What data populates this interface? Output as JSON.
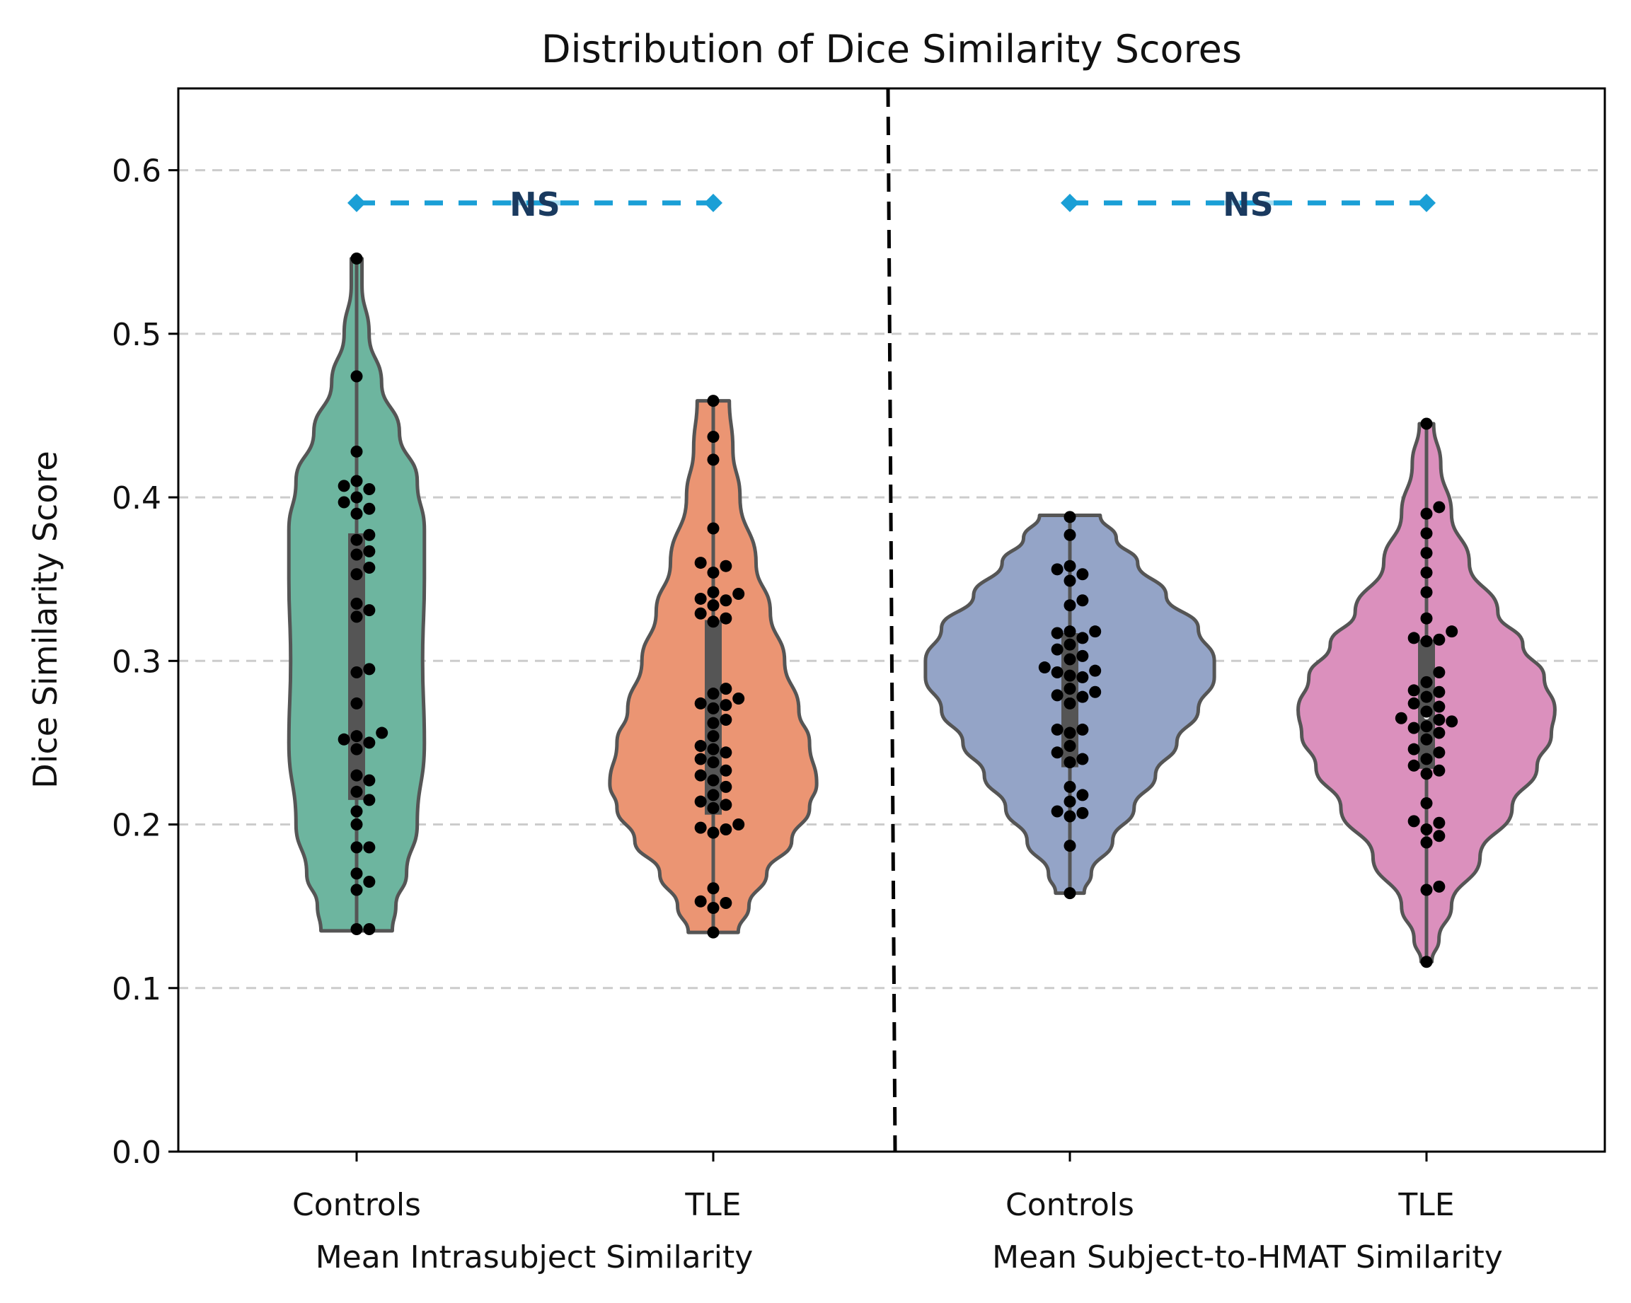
{
  "chart_data": {
    "type": "violin",
    "title": "Distribution of Dice Similarity Scores",
    "xlabel": "",
    "ylabel": "Dice Similarity Score",
    "ylim": [
      0,
      0.65
    ],
    "yticks": [
      "0.0",
      "0.1",
      "0.2",
      "0.3",
      "0.4",
      "0.5",
      "0.6"
    ],
    "ytick_values": [
      0,
      0.1,
      0.2,
      0.3,
      0.4,
      0.5,
      0.6
    ],
    "grid": "horizontal dashed",
    "categories": [
      "Controls",
      "TLE",
      "Controls",
      "TLE"
    ],
    "group_labels": [
      "Mean Intrasubject Similarity",
      "Mean Subject-to-HMAT Similarity"
    ],
    "divider": "dashed vertical line between groups",
    "annotations": [
      {
        "text": "NS",
        "from": 0,
        "to": 1,
        "y": 0.58
      },
      {
        "text": "NS",
        "from": 2,
        "to": 3,
        "y": 0.58
      }
    ],
    "colors": {
      "violins": [
        "#6db59f",
        "#eb9573",
        "#94a4c7",
        "#db90bd"
      ],
      "violin_edge": "#555555",
      "points": "#000000",
      "annotation_line": "#1a9fd6",
      "annotation_text": "#1a3a5f",
      "grid": "#cccccc"
    },
    "series": [
      {
        "name": "Controls - Mean Intrasubject Similarity",
        "quartiles": [
          0.215,
          0.292,
          0.378
        ],
        "range": [
          0.135,
          0.546
        ],
        "density_profile": [
          [
            0.135,
            0.1
          ],
          [
            0.15,
            0.11
          ],
          [
            0.17,
            0.14
          ],
          [
            0.2,
            0.17
          ],
          [
            0.25,
            0.19
          ],
          [
            0.3,
            0.185
          ],
          [
            0.35,
            0.19
          ],
          [
            0.38,
            0.19
          ],
          [
            0.41,
            0.17
          ],
          [
            0.44,
            0.12
          ],
          [
            0.47,
            0.07
          ],
          [
            0.5,
            0.035
          ],
          [
            0.53,
            0.015
          ],
          [
            0.546,
            0.015
          ]
        ],
        "values": [
          0.546,
          0.474,
          0.428,
          0.41,
          0.407,
          0.405,
          0.4,
          0.397,
          0.393,
          0.39,
          0.377,
          0.374,
          0.367,
          0.365,
          0.357,
          0.353,
          0.335,
          0.331,
          0.327,
          0.295,
          0.293,
          0.274,
          0.256,
          0.254,
          0.252,
          0.25,
          0.246,
          0.23,
          0.227,
          0.22,
          0.215,
          0.208,
          0.2,
          0.186,
          0.186,
          0.17,
          0.165,
          0.16,
          0.136,
          0.136
        ]
      },
      {
        "name": "TLE - Mean Intrasubject Similarity",
        "quartiles": [
          0.206,
          0.245,
          0.325
        ],
        "range": [
          0.134,
          0.459
        ],
        "density_profile": [
          [
            0.134,
            0.07
          ],
          [
            0.15,
            0.1
          ],
          [
            0.17,
            0.15
          ],
          [
            0.19,
            0.22
          ],
          [
            0.21,
            0.27
          ],
          [
            0.225,
            0.29
          ],
          [
            0.25,
            0.27
          ],
          [
            0.27,
            0.24
          ],
          [
            0.3,
            0.2
          ],
          [
            0.33,
            0.16
          ],
          [
            0.36,
            0.12
          ],
          [
            0.4,
            0.075
          ],
          [
            0.43,
            0.055
          ],
          [
            0.459,
            0.045
          ]
        ],
        "values": [
          0.459,
          0.437,
          0.423,
          0.381,
          0.36,
          0.358,
          0.354,
          0.342,
          0.341,
          0.338,
          0.337,
          0.334,
          0.329,
          0.326,
          0.324,
          0.283,
          0.28,
          0.277,
          0.274,
          0.273,
          0.271,
          0.264,
          0.262,
          0.254,
          0.248,
          0.246,
          0.244,
          0.24,
          0.238,
          0.233,
          0.23,
          0.227,
          0.223,
          0.218,
          0.214,
          0.212,
          0.21,
          0.2,
          0.198,
          0.197,
          0.195,
          0.161,
          0.153,
          0.152,
          0.149,
          0.134
        ]
      },
      {
        "name": "Controls - Mean Subject-to-HMAT Similarity",
        "quartiles": [
          0.235,
          0.276,
          0.317
        ],
        "range": [
          0.158,
          0.389
        ],
        "density_profile": [
          [
            0.158,
            0.04
          ],
          [
            0.17,
            0.06
          ],
          [
            0.19,
            0.12
          ],
          [
            0.21,
            0.18
          ],
          [
            0.23,
            0.24
          ],
          [
            0.25,
            0.3
          ],
          [
            0.27,
            0.36
          ],
          [
            0.29,
            0.405
          ],
          [
            0.3,
            0.405
          ],
          [
            0.32,
            0.36
          ],
          [
            0.34,
            0.27
          ],
          [
            0.36,
            0.19
          ],
          [
            0.375,
            0.13
          ],
          [
            0.389,
            0.085
          ]
        ],
        "values": [
          0.388,
          0.377,
          0.358,
          0.356,
          0.353,
          0.349,
          0.337,
          0.334,
          0.318,
          0.318,
          0.317,
          0.314,
          0.31,
          0.307,
          0.303,
          0.301,
          0.296,
          0.294,
          0.293,
          0.291,
          0.29,
          0.283,
          0.281,
          0.279,
          0.278,
          0.274,
          0.258,
          0.258,
          0.256,
          0.248,
          0.244,
          0.24,
          0.238,
          0.223,
          0.218,
          0.214,
          0.208,
          0.207,
          0.205,
          0.187,
          0.158
        ]
      },
      {
        "name": "TLE - Mean Subject-to-HMAT Similarity",
        "quartiles": [
          0.234,
          0.266,
          0.313
        ],
        "range": [
          0.116,
          0.445
        ],
        "density_profile": [
          [
            0.116,
            0.015
          ],
          [
            0.13,
            0.035
          ],
          [
            0.15,
            0.07
          ],
          [
            0.18,
            0.15
          ],
          [
            0.21,
            0.24
          ],
          [
            0.235,
            0.31
          ],
          [
            0.255,
            0.35
          ],
          [
            0.27,
            0.36
          ],
          [
            0.29,
            0.33
          ],
          [
            0.31,
            0.27
          ],
          [
            0.33,
            0.2
          ],
          [
            0.36,
            0.12
          ],
          [
            0.39,
            0.07
          ],
          [
            0.42,
            0.04
          ],
          [
            0.445,
            0.02
          ]
        ],
        "values": [
          0.445,
          0.394,
          0.39,
          0.378,
          0.366,
          0.354,
          0.342,
          0.326,
          0.318,
          0.314,
          0.313,
          0.312,
          0.293,
          0.287,
          0.282,
          0.281,
          0.278,
          0.274,
          0.272,
          0.269,
          0.265,
          0.263,
          0.264,
          0.26,
          0.259,
          0.256,
          0.252,
          0.246,
          0.244,
          0.24,
          0.236,
          0.233,
          0.231,
          0.213,
          0.201,
          0.202,
          0.197,
          0.193,
          0.189,
          0.162,
          0.16,
          0.116
        ]
      }
    ]
  }
}
